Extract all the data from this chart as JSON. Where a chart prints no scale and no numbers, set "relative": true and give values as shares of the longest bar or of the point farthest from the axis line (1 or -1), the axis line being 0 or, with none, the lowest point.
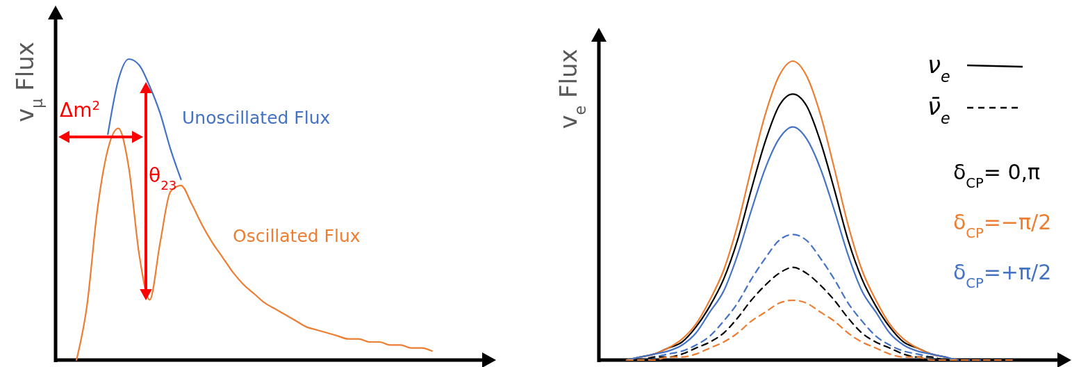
{
  "chart_data": [
    {
      "type": "line",
      "relative": true,
      "ylabel": "v$_{μ}$ Flux",
      "legend": "right",
      "categories": [
        null,
        null,
        null,
        null,
        null,
        null,
        null,
        null,
        null,
        null,
        null,
        null,
        null,
        null,
        null,
        null,
        null,
        null,
        null,
        null,
        null,
        null,
        null,
        null,
        null,
        null,
        null,
        null,
        null,
        null,
        null,
        null,
        null,
        null,
        null,
        null,
        null,
        null,
        null,
        null,
        null,
        null,
        null
      ],
      "series": [
        {
          "name": "Unoscillated Flux",
          "color": "#4472c4",
          "values": [
            null,
            null,
            null,
            null,
            null,
            0.75,
            0.93,
            1.0,
            0.98,
            0.91,
            0.82,
            0.7,
            0.6,
            null,
            null,
            null,
            null,
            null,
            null,
            null,
            null,
            null,
            null,
            null,
            null,
            null,
            null,
            null,
            null,
            null,
            null,
            null,
            null,
            null,
            null,
            null,
            null,
            null,
            null,
            null,
            null,
            null,
            null
          ]
        },
        {
          "name": "Oscillated Flux",
          "color": "#ed7d31",
          "values": [
            null,
            null,
            0,
            0.18,
            0.5,
            0.7,
            0.77,
            0.64,
            0.35,
            0.2,
            0.39,
            0.56,
            0.58,
            0.52,
            0.45,
            0.39,
            0.34,
            0.29,
            0.25,
            0.22,
            0.19,
            0.17,
            0.15,
            0.13,
            0.11,
            0.1,
            0.09,
            0.08,
            0.07,
            0.07,
            0.06,
            0.06,
            0.05,
            0.05,
            0.04,
            0.04,
            0.03,
            null,
            null,
            null,
            null,
            null,
            null
          ]
        }
      ],
      "annotations": [
        "Δm$^{2}$",
        "θ$_{23}$"
      ]
    },
    {
      "type": "line",
      "relative": true,
      "ylabel": "v$_{e}$ Flux",
      "legend": "right",
      "categories": [
        null,
        null,
        null,
        null,
        null,
        null,
        null,
        null,
        null,
        null,
        null,
        null,
        null,
        null,
        null,
        null,
        null,
        null,
        null,
        null,
        null,
        null,
        null,
        null,
        null,
        null,
        null,
        null,
        null,
        null,
        null,
        null,
        null,
        null,
        null
      ],
      "series": [
        {
          "name": "δ$_{CP}$= 0,π",
          "color": "#000000",
          "line_style": "solid",
          "values": [
            null,
            null,
            0,
            0.01,
            0.02,
            0.04,
            0.06,
            0.11,
            0.18,
            0.27,
            0.4,
            0.57,
            0.73,
            0.85,
            0.89,
            0.85,
            0.73,
            0.57,
            0.4,
            0.27,
            0.18,
            0.11,
            0.06,
            0.04,
            0.02,
            0.01,
            0,
            0,
            0,
            null,
            null,
            null,
            null,
            null,
            null
          ]
        },
        {
          "name": "δ$_{CP}$=−π/2",
          "color": "#ed7d31",
          "line_style": "solid",
          "values": [
            null,
            null,
            0,
            0.01,
            0.02,
            0.04,
            0.07,
            0.12,
            0.2,
            0.3,
            0.45,
            0.64,
            0.82,
            0.95,
            1.0,
            0.95,
            0.82,
            0.64,
            0.45,
            0.3,
            0.2,
            0.12,
            0.07,
            0.04,
            0.02,
            0.01,
            0,
            0,
            0,
            null,
            null,
            null,
            null,
            null,
            null
          ]
        },
        {
          "name": "δ$_{CP}$=+π/2",
          "color": "#4472c4",
          "line_style": "solid",
          "values": [
            null,
            null,
            0,
            0.01,
            0.02,
            0.03,
            0.05,
            0.09,
            0.16,
            0.23,
            0.35,
            0.5,
            0.64,
            0.74,
            0.78,
            0.74,
            0.64,
            0.5,
            0.35,
            0.23,
            0.16,
            0.09,
            0.05,
            0.03,
            0.02,
            0.01,
            0,
            0,
            0,
            null,
            null,
            null,
            null,
            null,
            null
          ]
        },
        {
          "color": "#4472c4",
          "line_style": "dashed",
          "values": [
            null,
            null,
            0,
            0,
            0.01,
            0.02,
            0.03,
            0.05,
            0.08,
            0.13,
            0.19,
            0.27,
            0.34,
            0.4,
            0.42,
            0.4,
            0.34,
            0.27,
            0.19,
            0.13,
            0.08,
            0.05,
            0.03,
            0.02,
            0.01,
            0,
            0,
            0,
            0,
            null,
            null,
            null,
            null,
            null,
            null
          ]
        },
        {
          "color": "#000000",
          "line_style": "dashed",
          "values": [
            null,
            null,
            0,
            0,
            0.01,
            0.01,
            0.02,
            0.04,
            0.06,
            0.09,
            0.14,
            0.2,
            0.25,
            0.29,
            0.31,
            0.29,
            0.25,
            0.2,
            0.14,
            0.09,
            0.06,
            0.04,
            0.02,
            0.01,
            0.01,
            0,
            0,
            0,
            0,
            null,
            null,
            null,
            null,
            null,
            null
          ]
        },
        {
          "color": "#ed7d31",
          "line_style": "dashed",
          "values": [
            null,
            null,
            0,
            0,
            0,
            0.01,
            0.01,
            0.02,
            0.04,
            0.06,
            0.09,
            0.13,
            0.16,
            0.19,
            0.2,
            0.19,
            0.16,
            0.13,
            0.09,
            0.06,
            0.04,
            0.02,
            0.01,
            0.01,
            0,
            0,
            0,
            0,
            0,
            0,
            0,
            null,
            null,
            null,
            null
          ]
        }
      ],
      "annotations": [
        "ν$_{e}$",
        "ν̄$_{e}$"
      ]
    }
  ]
}
